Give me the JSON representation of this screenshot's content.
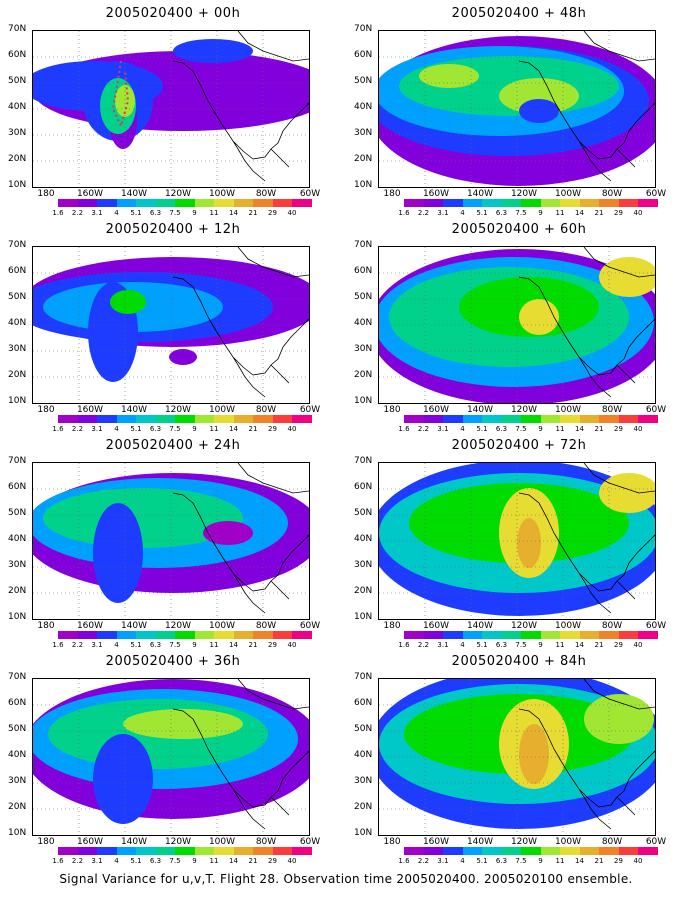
{
  "panels": [
    {
      "title": "2005020400 + 00h"
    },
    {
      "title": "2005020400 + 48h"
    },
    {
      "title": "2005020400 + 12h"
    },
    {
      "title": "2005020400 + 60h"
    },
    {
      "title": "2005020400 + 24h"
    },
    {
      "title": "2005020400 + 72h"
    },
    {
      "title": "2005020400 + 36h"
    },
    {
      "title": "2005020400 + 84h"
    }
  ],
  "lat_labels": [
    "70N",
    "60N",
    "50N",
    "40N",
    "30N",
    "20N",
    "10N"
  ],
  "lon_labels": [
    "180",
    "160W",
    "140W",
    "120W",
    "100W",
    "80W",
    "60W"
  ],
  "colorbar": {
    "labels": [
      "1.6",
      "2.2",
      "3.1",
      "4",
      "5.1",
      "6.3",
      "7.5",
      "9",
      "11",
      "14",
      "21",
      "29",
      "40"
    ],
    "colors": [
      "#a000c8",
      "#8200dc",
      "#1e3cff",
      "#00a0ff",
      "#00c8c8",
      "#00d28c",
      "#00dc00",
      "#a0e632",
      "#e6dc32",
      "#e6af2d",
      "#f08228",
      "#fa3c3c",
      "#f00082"
    ]
  },
  "footer": "Signal Variance for u,v,T. Flight 28. Observation time 2005020400. 2005020100 ensemble."
}
